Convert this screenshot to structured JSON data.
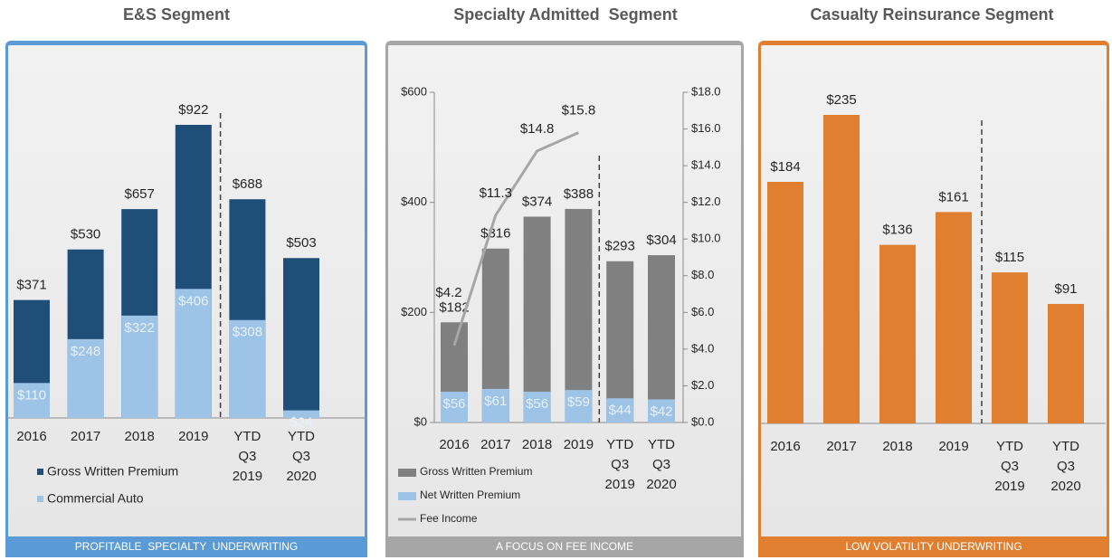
{
  "chart_data": [
    {
      "type": "bar",
      "title": "E&S Segment",
      "footer": "PROFITABLE  SPECIALTY  UNDERWRITING",
      "categories": [
        "2016",
        "2017",
        "2018",
        "2019",
        "YTD Q3 2019",
        "YTD Q3 2020"
      ],
      "series": [
        {
          "name": "Gross Written Premium",
          "color": "#1f4e79",
          "values": [
            371,
            530,
            657,
            922,
            688,
            503
          ],
          "value_labels": [
            "$371",
            "$530",
            "$657",
            "$922",
            "$688",
            "$503"
          ]
        },
        {
          "name": "Commercial Auto",
          "color": "#9dc3e6",
          "values": [
            110,
            248,
            322,
            406,
            308,
            24
          ],
          "value_labels": [
            "$110",
            "$248",
            "$322",
            "$406",
            "$308",
            "$24"
          ]
        }
      ],
      "legend": "bottom-left"
    },
    {
      "type": "bar",
      "title": "Specialty Admitted  Segment",
      "footer": "A FOCUS ON FEE INCOME",
      "categories": [
        "2016",
        "2017",
        "2018",
        "2019",
        "YTD Q3 2019",
        "YTD Q3 2020"
      ],
      "series": [
        {
          "name": "Gross Written Premium",
          "color": "#808080",
          "values": [
            182,
            316,
            374,
            388,
            293,
            304
          ],
          "value_labels": [
            "$182",
            "$316",
            "$374",
            "$388",
            "$293",
            "$304"
          ]
        },
        {
          "name": "Net Written Premium",
          "color": "#9dc3e6",
          "values": [
            56,
            61,
            56,
            59,
            44,
            42
          ],
          "value_labels": [
            "$56",
            "$61",
            "$56",
            "$59",
            "$44",
            "$42"
          ]
        },
        {
          "name": "Fee Income",
          "type": "line",
          "axis": "y2",
          "color": "#a6a6a6",
          "values": [
            4.2,
            11.3,
            14.8,
            15.8,
            null,
            null
          ],
          "value_labels": [
            "$4.2",
            "$11.3",
            "$14.8",
            "$15.8",
            null,
            null
          ]
        }
      ],
      "ylim": [
        0,
        600
      ],
      "yticks": [
        {
          "value": 0,
          "label": "$0"
        },
        {
          "value": 200,
          "label": "$200"
        },
        {
          "value": 400,
          "label": "$400"
        },
        {
          "value": 600,
          "label": "$600"
        }
      ],
      "y2lim": [
        0,
        18
      ],
      "y2ticks": [
        {
          "value": 0,
          "label": "$0.0"
        },
        {
          "value": 2,
          "label": "$2.0"
        },
        {
          "value": 4,
          "label": "$4.0"
        },
        {
          "value": 6,
          "label": "$6.0"
        },
        {
          "value": 8,
          "label": "$8.0"
        },
        {
          "value": 10,
          "label": "$10.0"
        },
        {
          "value": 12,
          "label": "$12.0"
        },
        {
          "value": 14,
          "label": "$14.0"
        },
        {
          "value": 16,
          "label": "$16.0"
        },
        {
          "value": 18,
          "label": "$18.0"
        }
      ],
      "legend": "bottom-left"
    },
    {
      "type": "bar",
      "title": "Casualty Reinsurance Segment",
      "footer": "LOW VOLATILITY UNDERWRITING",
      "categories": [
        "2016",
        "2017",
        "2018",
        "2019",
        "YTD Q3 2019",
        "YTD Q3 2020"
      ],
      "series": [
        {
          "name": "Gross Written Premium",
          "color": "#e07f2f",
          "values": [
            184,
            235,
            136,
            161,
            115,
            91
          ],
          "value_labels": [
            "$184",
            "$235",
            "$136",
            "$161",
            "$115",
            "$91"
          ]
        }
      ]
    }
  ]
}
